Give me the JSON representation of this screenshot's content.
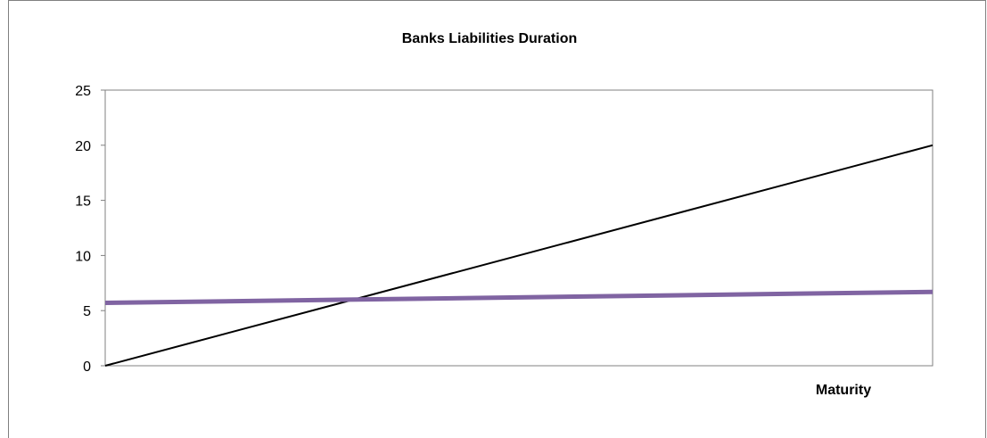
{
  "chart_data": {
    "type": "line",
    "title": "Banks Liabilities Duration",
    "xlabel": "Maturity",
    "ylabel": "",
    "ylim": [
      0,
      25
    ],
    "yticks": [
      "0",
      "5",
      "10",
      "15",
      "20",
      "25"
    ],
    "x": [
      0,
      1
    ],
    "grid": false,
    "legend": "none",
    "series": [
      {
        "values": [
          0,
          20
        ],
        "color": "#000000"
      },
      {
        "values": [
          5.7,
          6.7
        ],
        "color": "#8064A2"
      }
    ]
  }
}
